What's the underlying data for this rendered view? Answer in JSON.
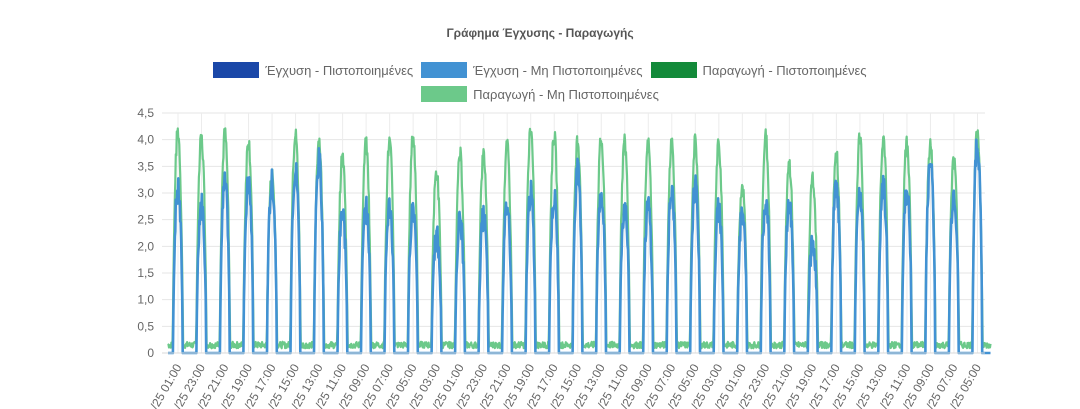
{
  "chart_data": {
    "type": "line",
    "title": "Γράφημα Έγχυσης - Παραγωγής",
    "xlabel": "",
    "ylabel": "",
    "ylim": [
      0,
      4.5
    ],
    "yticks": [
      "0",
      "0,5",
      "1,0",
      "1,5",
      "2,0",
      "2,5",
      "3,0",
      "3,5",
      "4,0",
      "4,5"
    ],
    "x_tick_labels": [
      "/25 01:00",
      "/25 23:00",
      "/25 21:00",
      "/25 19:00",
      "/25 17:00",
      "/25 15:00",
      "/25 13:00",
      "/25 11:00",
      "/25 09:00",
      "/25 07:00",
      "/25 05:00",
      "/25 03:00",
      "/25 01:00",
      "/25 23:00",
      "/25 21:00",
      "/25 19:00",
      "/25 17:00",
      "/25 15:00",
      "/25 13:00",
      "/25 11:00",
      "/25 09:00",
      "/25 07:00",
      "/25 05:00",
      "/25 03:00",
      "/25 01:00",
      "/25 23:00",
      "/25 21:00",
      "/25 19:00",
      "/25 17:00",
      "/25 15:00",
      "/25 13:00",
      "/25 11:00",
      "/25 09:00",
      "/25 07:00",
      "/25 05:00"
    ],
    "grid": true,
    "legend_position": "top",
    "legend": [
      {
        "name": "Έγχυση - Πιστοποιημένες",
        "color": "#1a47a8"
      },
      {
        "name": "Έγχυση - Μη Πιστοποιημένες",
        "color": "#4292d3"
      },
      {
        "name": "Παραγωγή - Πιστοποιημένες",
        "color": "#138a3a"
      },
      {
        "name": "Παραγωγή - Μη Πιστοποιημένες",
        "color": "#6cc98a"
      }
    ],
    "daily_peaks": {
      "production_non_certified": [
        4.15,
        4.0,
        4.1,
        4.0,
        3.35,
        4.1,
        4.0,
        3.65,
        3.9,
        3.95,
        4.05,
        3.4,
        3.7,
        3.7,
        3.85,
        4.2,
        4.1,
        4.0,
        4.0,
        3.95,
        3.9,
        3.95,
        3.95,
        3.9,
        3.15,
        4.05,
        3.55,
        3.25,
        3.7,
        4.0,
        4.05,
        3.95,
        3.9,
        3.6,
        4.15
      ],
      "injection_non_certified": [
        3.05,
        2.8,
        3.15,
        3.2,
        3.2,
        3.45,
        3.6,
        2.6,
        2.7,
        2.75,
        2.75,
        2.2,
        2.5,
        2.55,
        2.75,
        3.0,
        2.9,
        3.4,
        3.0,
        2.75,
        2.75,
        3.0,
        3.1,
        2.7,
        2.6,
        2.85,
        2.8,
        2.1,
        3.15,
        3.0,
        3.1,
        3.05,
        3.55,
        3.0,
        3.9
      ],
      "production_night_baseline": 0.15,
      "injection_night_baseline": 0.0
    }
  }
}
